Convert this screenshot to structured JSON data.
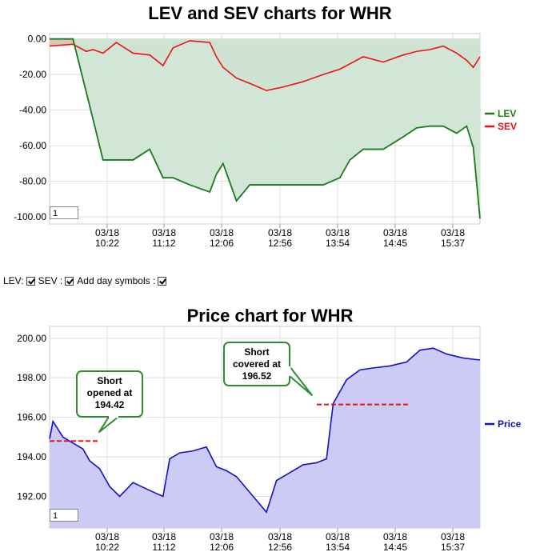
{
  "lev_chart": {
    "title": "LEV and SEV charts for WHR",
    "zoom_value": "1",
    "legend": [
      {
        "name": "LEV",
        "color": "#1a7a1a"
      },
      {
        "name": "SEV",
        "color": "#ee1111"
      }
    ],
    "colors": {
      "lev_fill": "#cfe5d5",
      "sev_fill": "#d7c5b5",
      "grid": "#dddddd"
    },
    "x_ticks": [
      {
        "date": "03/18",
        "time": "10:22"
      },
      {
        "date": "03/18",
        "time": "11:12"
      },
      {
        "date": "03/18",
        "time": "12:06"
      },
      {
        "date": "03/18",
        "time": "12:56"
      },
      {
        "date": "03/18",
        "time": "13:54"
      },
      {
        "date": "03/18",
        "time": "14:45"
      },
      {
        "date": "03/18",
        "time": "15:37"
      }
    ],
    "y_ticks": [
      "0.00",
      "-20.00",
      "-40.00",
      "-60.00",
      "-80.00",
      "-100.00"
    ]
  },
  "controls": {
    "lev_label": "LEV:",
    "sev_label": "SEV :",
    "day_label": "Add day symbols :"
  },
  "price_chart": {
    "title": "Price chart for WHR",
    "zoom_value": "1",
    "legend": [
      {
        "name": "Price",
        "color": "#1111cc"
      }
    ],
    "colors": {
      "fill": "#cbcbf5",
      "line": "#1111cc",
      "trade": "#ee1111"
    },
    "x_ticks": [
      {
        "date": "03/18",
        "time": "10:22"
      },
      {
        "date": "03/18",
        "time": "11:12"
      },
      {
        "date": "03/18",
        "time": "12:06"
      },
      {
        "date": "03/18",
        "time": "12:56"
      },
      {
        "date": "03/18",
        "time": "13:54"
      },
      {
        "date": "03/18",
        "time": "14:45"
      },
      {
        "date": "03/18",
        "time": "15:37"
      }
    ],
    "y_ticks": [
      "200.00",
      "198.00",
      "196.00",
      "194.00",
      "192.00"
    ],
    "annotations": [
      {
        "lines": [
          "Short",
          "opened at",
          "194.42"
        ]
      },
      {
        "lines": [
          "Short",
          "covered at",
          "196.52"
        ]
      }
    ]
  },
  "chart_data": [
    {
      "type": "line",
      "title": "LEV and SEV charts for WHR",
      "xlabel": "",
      "ylabel": "",
      "ylim": [
        -104,
        3
      ],
      "grid": true,
      "legend_position": "right",
      "categories": [
        "10:22",
        "11:12",
        "12:06",
        "12:56",
        "13:54",
        "14:45",
        "15:37"
      ],
      "x": [
        9.5,
        9.85,
        10.05,
        10.15,
        10.3,
        10.5,
        10.75,
        11.0,
        11.2,
        11.35,
        11.6,
        11.9,
        12.0,
        12.1,
        12.3,
        12.5,
        12.75,
        13.0,
        13.3,
        13.6,
        13.85,
        14.0,
        14.2,
        14.5,
        14.8,
        15.0,
        15.2,
        15.4,
        15.6,
        15.75,
        15.85,
        15.95
      ],
      "series": [
        {
          "name": "LEV",
          "values": [
            0,
            0,
            -30,
            -45,
            -68,
            -68,
            -68,
            -62,
            -78,
            -78,
            -82,
            -86,
            -76,
            -70,
            -91,
            -82,
            -82,
            -82,
            -82,
            -82,
            -78,
            -68,
            -62,
            -62,
            -55,
            -50,
            -49,
            -49,
            -53,
            -49,
            -61,
            -101
          ]
        },
        {
          "name": "SEV",
          "values": [
            -4,
            -3,
            -7,
            -6,
            -8,
            -2,
            -8,
            -9,
            -15,
            -5,
            -1,
            -2,
            -10,
            -16,
            -22,
            -25,
            -29,
            -27,
            -24,
            -20,
            -17,
            -14,
            -10,
            -13,
            -9,
            -7,
            -6,
            -4,
            -8,
            -12,
            -16,
            -10
          ]
        }
      ]
    },
    {
      "type": "area",
      "title": "Price chart for WHR",
      "xlabel": "",
      "ylabel": "",
      "ylim": [
        190.4,
        200.6
      ],
      "grid": true,
      "legend_position": "right",
      "categories": [
        "10:22",
        "11:12",
        "12:06",
        "12:56",
        "13:54",
        "14:45",
        "15:37"
      ],
      "x": [
        9.5,
        9.55,
        9.7,
        9.85,
        10.0,
        10.1,
        10.25,
        10.4,
        10.55,
        10.75,
        11.0,
        11.2,
        11.3,
        11.45,
        11.65,
        11.85,
        12.0,
        12.15,
        12.3,
        12.5,
        12.6,
        12.75,
        12.9,
        13.1,
        13.3,
        13.5,
        13.65,
        13.75,
        13.95,
        14.15,
        14.35,
        14.6,
        14.85,
        15.05,
        15.25,
        15.45,
        15.7,
        15.95
      ],
      "series": [
        {
          "name": "Price",
          "values": [
            194.9,
            195.8,
            195.0,
            194.7,
            194.4,
            193.8,
            193.4,
            192.5,
            192.0,
            192.7,
            192.3,
            192.0,
            193.9,
            194.2,
            194.3,
            194.5,
            193.5,
            193.3,
            193.0,
            192.2,
            191.8,
            191.2,
            192.8,
            193.2,
            193.6,
            193.7,
            193.9,
            196.7,
            197.9,
            198.4,
            198.5,
            198.6,
            198.8,
            199.4,
            199.5,
            199.2,
            199.0,
            198.9
          ]
        }
      ]
    }
  ]
}
